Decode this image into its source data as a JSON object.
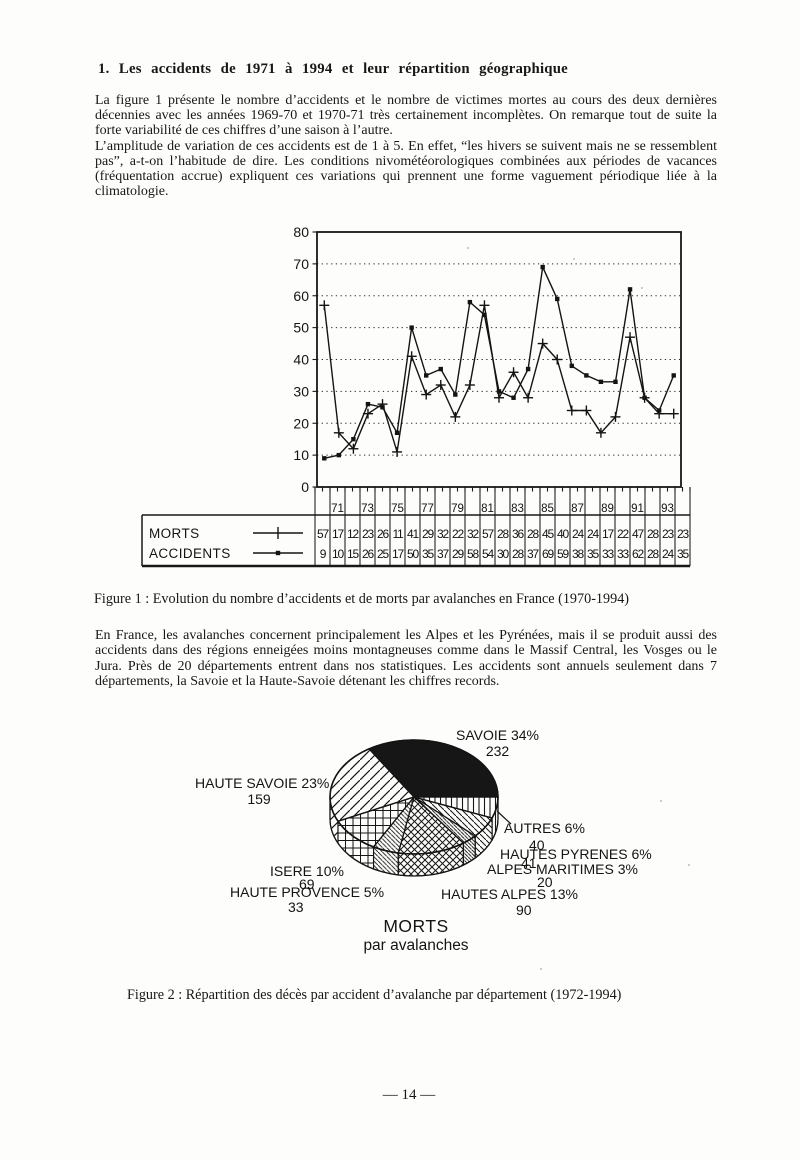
{
  "document": {
    "heading": "1. Les accidents de 1971 à 1994 et leur répartition géographique",
    "paragraph1": "La figure 1 présente le nombre d’accidents et le nombre de victimes mortes au cours des deux dernières décennies avec les années 1969-70 et 1970-71 très certainement incomplètes. On remarque tout de suite la forte variabilité de ces chiffres d’une saison à l’autre.",
    "paragraph2": "L’amplitude de variation de ces accidents est de 1 à 5. En effet, “les hivers se suivent mais ne se ressemblent pas”, a-t-on l’habitude de dire. Les conditions nivométéorologiques combinées aux périodes de vacances (fréquentation accrue) expliquent ces variations qui prennent une forme vaguement périodique liée à la climatologie.",
    "figure1_caption": "Figure 1 : Evolution du nombre d’accidents et de morts par avalanches en France (1970-1994)",
    "paragraph3": "En France, les avalanches concernent principalement les Alpes et les Pyrénées, mais il se produit aussi des accidents dans des régions enneigées moins montagneuses comme dans le Massif Central, les Vosges ou le Jura. Près de 20 départements entrent dans nos statistiques. Les accidents sont annuels seulement dans 7 départements, la Savoie et la Haute-Savoie détenant les chiffres records.",
    "figure2_caption": "Figure 2 : Répartition des décès par accident d’avalanche par département (1972-1994)",
    "page_number": "— 14 —"
  },
  "chart_data": [
    {
      "type": "line",
      "title": "",
      "xlabel": "",
      "ylabel": "",
      "x_years": [
        1970,
        1971,
        1972,
        1973,
        1974,
        1975,
        1976,
        1977,
        1978,
        1979,
        1980,
        1981,
        1982,
        1983,
        1984,
        1985,
        1986,
        1987,
        1988,
        1989,
        1990,
        1991,
        1992,
        1993,
        1994
      ],
      "x_tick_labels": [
        "71",
        "73",
        "75",
        "77",
        "79",
        "81",
        "83",
        "85",
        "87",
        "89",
        "91",
        "93"
      ],
      "ylim": [
        0,
        80
      ],
      "yticks": [
        0,
        10,
        20,
        30,
        40,
        50,
        60,
        70,
        80
      ],
      "grid": "dotted-horizontal",
      "legend_position": "table-left",
      "series": [
        {
          "name": "MORTS",
          "marker": "plus",
          "values": [
            57,
            17,
            12,
            23,
            26,
            11,
            41,
            29,
            32,
            22,
            32,
            57,
            28,
            36,
            28,
            45,
            40,
            24,
            24,
            17,
            22,
            47,
            28,
            23,
            23
          ]
        },
        {
          "name": "ACCIDENTS",
          "marker": "square-dot",
          "values": [
            9,
            10,
            15,
            26,
            25,
            17,
            50,
            35,
            37,
            29,
            58,
            54,
            30,
            28,
            37,
            69,
            59,
            38,
            35,
            33,
            33,
            62,
            28,
            24,
            35
          ]
        }
      ]
    },
    {
      "type": "pie",
      "title": "MORTS",
      "subtitle": "par avalanches",
      "start_angle_deg": 122.4,
      "direction": "clockwise",
      "style": "3d-ellipse-hatched",
      "slices": [
        {
          "label": "SAVOIE",
          "percent": 34,
          "value": 232,
          "pattern": "solid-black"
        },
        {
          "label": "AUTRES",
          "percent": 6,
          "value": 40,
          "pattern": "vertical-lines"
        },
        {
          "label": "HAUTES PYRENES",
          "percent": 6,
          "value": 41,
          "pattern": "diagonal-lines"
        },
        {
          "label": "ALPES MARITIMES",
          "percent": 3,
          "value": 20,
          "pattern": "diagonal-lines-fine"
        },
        {
          "label": "HAUTES ALPES",
          "percent": 13,
          "value": 90,
          "pattern": "diamond-crosshatch"
        },
        {
          "label": "HAUTE PROVENCE",
          "percent": 5,
          "value": 33,
          "pattern": "diagonal-lines-dense"
        },
        {
          "label": "ISERE",
          "percent": 10,
          "value": 69,
          "pattern": "grid-crosshatch"
        },
        {
          "label": "HAUTE SAVOIE",
          "percent": 23,
          "value": 159,
          "pattern": "diagonal-lines-wide"
        }
      ]
    }
  ],
  "figure2_labels": {
    "savoie_line1": "SAVOIE 34%",
    "savoie_line2": "232",
    "haute_savoie_line1": "HAUTE SAVOIE 23%",
    "haute_savoie_line2": "159",
    "autres_line1": "AUTRES 6%",
    "autres_line2": "40",
    "hautes_pyrenees_line": "HAUTES PYRENES 6%",
    "hautes_pyrenees_value": "41",
    "alpes_maritimes_line": "ALPES MARITIMES 3%",
    "alpes_maritimes_value": "20",
    "hautes_alpes_line": "HAUTES ALPES 13%",
    "hautes_alpes_value": "90",
    "isere_line": "ISERE 10%",
    "isere_value": "69",
    "haute_provence_line": "HAUTE PROVENCE 5%",
    "haute_provence_value": "33",
    "title_line1": "MORTS",
    "title_line2": "par avalanches"
  }
}
